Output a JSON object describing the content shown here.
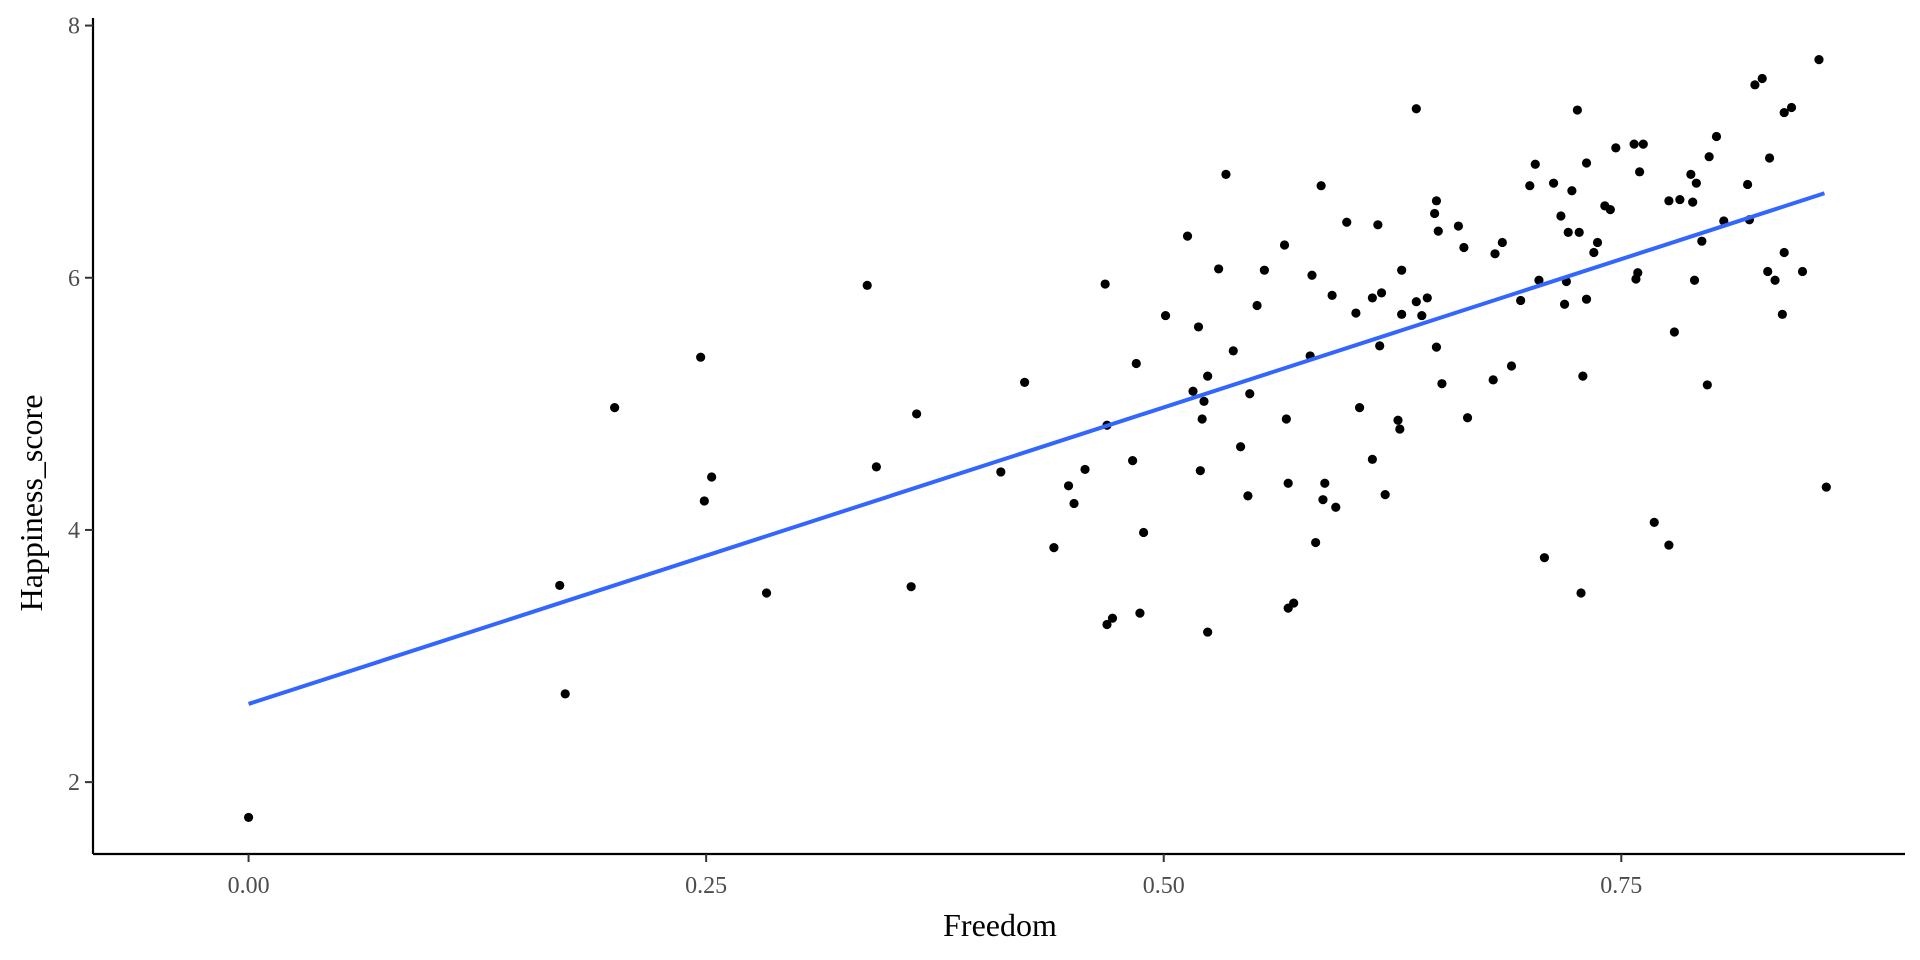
{
  "chart_data": {
    "type": "scatter",
    "xlabel": "Freedom",
    "ylabel": "Happiness_score",
    "xlim": [
      -0.085,
      0.905
    ],
    "ylim": [
      1.43,
      8.06
    ],
    "x_ticks": [
      0.0,
      0.25,
      0.5,
      0.75
    ],
    "x_tick_labels": [
      "0.00",
      "0.25",
      "0.50",
      "0.75"
    ],
    "y_ticks": [
      2,
      4,
      6,
      8
    ],
    "y_tick_labels": [
      "2",
      "4",
      "6",
      "8"
    ],
    "grid": false,
    "legend": "none",
    "trend_line": {
      "x": [
        0.0,
        0.861
      ],
      "y": [
        2.62,
        6.67
      ],
      "color": "#3366ff"
    },
    "point_color": "#000000",
    "points": [
      [
        0.0,
        1.72
      ],
      [
        0.17,
        3.56
      ],
      [
        0.173,
        2.7
      ],
      [
        0.2,
        4.97
      ],
      [
        0.247,
        5.37
      ],
      [
        0.249,
        4.23
      ],
      [
        0.253,
        4.42
      ],
      [
        0.283,
        3.5
      ],
      [
        0.338,
        5.94
      ],
      [
        0.343,
        4.5
      ],
      [
        0.362,
        3.55
      ],
      [
        0.365,
        4.92
      ],
      [
        0.411,
        4.46
      ],
      [
        0.424,
        5.17
      ],
      [
        0.44,
        3.86
      ],
      [
        0.448,
        4.35
      ],
      [
        0.451,
        4.21
      ],
      [
        0.457,
        4.48
      ],
      [
        0.468,
        5.95
      ],
      [
        0.469,
        4.83
      ],
      [
        0.469,
        3.25
      ],
      [
        0.472,
        3.3
      ],
      [
        0.483,
        4.55
      ],
      [
        0.485,
        5.32
      ],
      [
        0.487,
        3.34
      ],
      [
        0.489,
        3.98
      ],
      [
        0.501,
        5.7
      ],
      [
        0.513,
        6.33
      ],
      [
        0.516,
        5.1
      ],
      [
        0.519,
        5.61
      ],
      [
        0.52,
        4.47
      ],
      [
        0.521,
        4.88
      ],
      [
        0.522,
        5.02
      ],
      [
        0.524,
        5.22
      ],
      [
        0.524,
        3.19
      ],
      [
        0.53,
        6.07
      ],
      [
        0.534,
        6.82
      ],
      [
        0.538,
        5.42
      ],
      [
        0.542,
        4.66
      ],
      [
        0.546,
        4.27
      ],
      [
        0.547,
        5.08
      ],
      [
        0.551,
        5.78
      ],
      [
        0.555,
        6.06
      ],
      [
        0.566,
        6.26
      ],
      [
        0.567,
        4.88
      ],
      [
        0.568,
        4.37
      ],
      [
        0.568,
        3.38
      ],
      [
        0.571,
        3.42
      ],
      [
        0.58,
        5.38
      ],
      [
        0.581,
        6.02
      ],
      [
        0.583,
        3.9
      ],
      [
        0.586,
        6.73
      ],
      [
        0.587,
        4.24
      ],
      [
        0.588,
        4.37
      ],
      [
        0.592,
        5.86
      ],
      [
        0.594,
        4.18
      ],
      [
        0.6,
        6.44
      ],
      [
        0.605,
        5.72
      ],
      [
        0.607,
        4.97
      ],
      [
        0.614,
        5.84
      ],
      [
        0.614,
        4.56
      ],
      [
        0.617,
        6.42
      ],
      [
        0.618,
        5.46
      ],
      [
        0.619,
        5.88
      ],
      [
        0.621,
        4.28
      ],
      [
        0.628,
        4.87
      ],
      [
        0.629,
        4.8
      ],
      [
        0.63,
        6.06
      ],
      [
        0.63,
        5.71
      ],
      [
        0.638,
        5.81
      ],
      [
        0.638,
        7.34
      ],
      [
        0.641,
        5.7
      ],
      [
        0.644,
        5.84
      ],
      [
        0.648,
        6.51
      ],
      [
        0.649,
        6.61
      ],
      [
        0.649,
        5.45
      ],
      [
        0.65,
        6.37
      ],
      [
        0.652,
        5.16
      ],
      [
        0.661,
        6.41
      ],
      [
        0.664,
        6.24
      ],
      [
        0.666,
        4.89
      ],
      [
        0.68,
        5.19
      ],
      [
        0.681,
        6.19
      ],
      [
        0.685,
        6.28
      ],
      [
        0.69,
        5.3
      ],
      [
        0.695,
        5.82
      ],
      [
        0.7,
        6.73
      ],
      [
        0.703,
        6.9
      ],
      [
        0.705,
        5.98
      ],
      [
        0.708,
        3.78
      ],
      [
        0.713,
        6.75
      ],
      [
        0.717,
        6.49
      ],
      [
        0.719,
        5.79
      ],
      [
        0.72,
        5.97
      ],
      [
        0.721,
        6.36
      ],
      [
        0.723,
        6.69
      ],
      [
        0.726,
        7.33
      ],
      [
        0.727,
        6.36
      ],
      [
        0.728,
        3.5
      ],
      [
        0.729,
        5.22
      ],
      [
        0.731,
        6.91
      ],
      [
        0.731,
        5.83
      ],
      [
        0.735,
        6.2
      ],
      [
        0.737,
        6.28
      ],
      [
        0.741,
        6.57
      ],
      [
        0.744,
        6.54
      ],
      [
        0.747,
        7.03
      ],
      [
        0.757,
        7.06
      ],
      [
        0.758,
        5.99
      ],
      [
        0.759,
        6.04
      ],
      [
        0.76,
        6.84
      ],
      [
        0.762,
        7.06
      ],
      [
        0.768,
        4.06
      ],
      [
        0.776,
        3.88
      ],
      [
        0.776,
        6.61
      ],
      [
        0.779,
        5.57
      ],
      [
        0.782,
        6.62
      ],
      [
        0.788,
        6.82
      ],
      [
        0.789,
        6.6
      ],
      [
        0.79,
        5.98
      ],
      [
        0.791,
        6.75
      ],
      [
        0.794,
        6.29
      ],
      [
        0.797,
        5.15
      ],
      [
        0.798,
        6.96
      ],
      [
        0.802,
        7.12
      ],
      [
        0.806,
        6.45
      ],
      [
        0.819,
        6.74
      ],
      [
        0.82,
        6.46
      ],
      [
        0.823,
        7.53
      ],
      [
        0.827,
        7.58
      ],
      [
        0.83,
        6.05
      ],
      [
        0.831,
        6.95
      ],
      [
        0.834,
        5.98
      ],
      [
        0.838,
        5.71
      ],
      [
        0.839,
        6.2
      ],
      [
        0.839,
        7.31
      ],
      [
        0.843,
        7.35
      ],
      [
        0.849,
        6.05
      ],
      [
        0.858,
        7.73
      ],
      [
        0.862,
        4.34
      ]
    ]
  }
}
